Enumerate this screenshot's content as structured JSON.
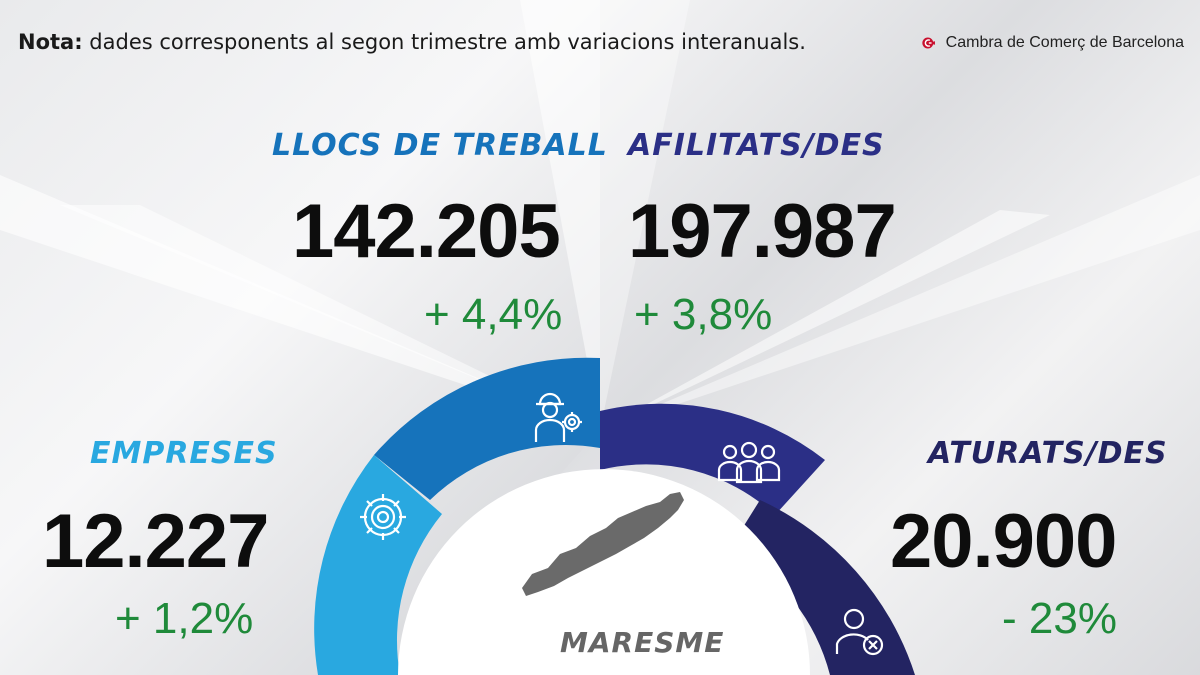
{
  "note": {
    "bold": "Nota:",
    "text": " dades corresponents al segon trimestre amb variacions interanuals."
  },
  "logo": {
    "text": "Cambra de Comerç de Barcelona"
  },
  "colors": {
    "light_blue": "#29a8e0",
    "mid_blue": "#1673bb",
    "indigo": "#2b2f86",
    "navy": "#232462",
    "green": "#1f8a3a"
  },
  "metrics": {
    "llocs": {
      "label": "LLOCS DE TREBALL",
      "value": "142.205",
      "change": "+ 4,4%",
      "icon": "worker-gear-icon"
    },
    "afiliats": {
      "label": "AFILITATS/DES",
      "value": "197.987",
      "change": "+ 3,8%",
      "icon": "people-group-icon"
    },
    "empreses": {
      "label": "EMPRESES",
      "value": "12.227",
      "change": "+ 1,2%",
      "icon": "gear-icon"
    },
    "aturats": {
      "label": "ATURATS/DES",
      "value": "20.900",
      "change": "- 23%",
      "icon": "person-x-icon"
    }
  },
  "region": {
    "name": "MARESME",
    "icon": "maresme-map-icon"
  }
}
